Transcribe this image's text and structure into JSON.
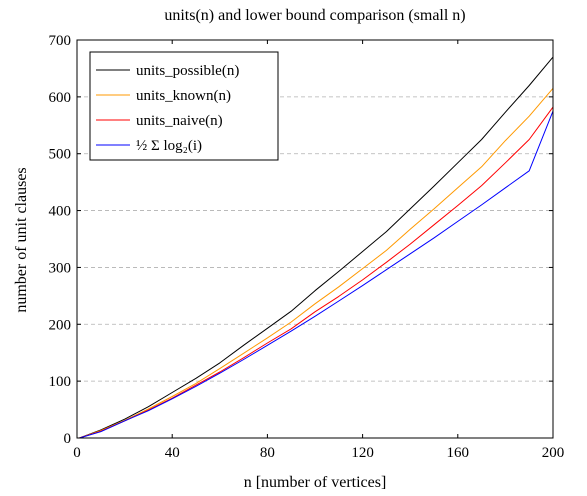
{
  "chart_data": {
    "type": "line",
    "title": "units(n) and lower bound comparison (small n)",
    "xlabel": "n [number of vertices]",
    "ylabel": "number of unit clauses",
    "xlim": [
      0,
      200
    ],
    "ylim": [
      0,
      700
    ],
    "xticks": [
      0,
      40,
      80,
      120,
      160,
      200
    ],
    "yticks": [
      0,
      100,
      200,
      300,
      400,
      500,
      600,
      700
    ],
    "grid": "horizontal-dashed",
    "legend_position": "top-left",
    "series": [
      {
        "name": "units_possible(n)",
        "color": "#000000",
        "x": [
          1,
          10,
          20,
          30,
          40,
          50,
          60,
          70,
          80,
          90,
          100,
          110,
          120,
          130,
          140,
          150,
          160,
          170,
          180,
          190,
          200
        ],
        "y": [
          0,
          14,
          33,
          55,
          80,
          105,
          132,
          163,
          193,
          223,
          259,
          293,
          328,
          363,
          403,
          443,
          484,
          525,
          573,
          620,
          670
        ]
      },
      {
        "name": "units_known(n)",
        "color": "#ff9900",
        "x": [
          1,
          10,
          20,
          30,
          40,
          50,
          60,
          70,
          80,
          90,
          100,
          110,
          120,
          130,
          140,
          150,
          160,
          170,
          180,
          190,
          200
        ],
        "y": [
          0,
          13,
          31,
          51,
          73,
          96,
          122,
          149,
          176,
          204,
          236,
          266,
          298,
          330,
          367,
          403,
          440,
          477,
          523,
          566,
          615
        ]
      },
      {
        "name": "units_naive(n)",
        "color": "#ff0000",
        "x": [
          1,
          10,
          20,
          30,
          40,
          50,
          60,
          70,
          80,
          90,
          100,
          110,
          120,
          130,
          140,
          150,
          160,
          170,
          180,
          190,
          200
        ],
        "y": [
          0,
          12,
          30,
          49,
          70,
          93,
          116,
          141,
          167,
          192,
          222,
          249,
          278,
          309,
          341,
          375,
          409,
          444,
          484,
          525,
          582
        ]
      },
      {
        "name": "½ Σ log₂(i)",
        "color": "#0000ff",
        "x": [
          1,
          10,
          20,
          30,
          40,
          50,
          60,
          70,
          80,
          90,
          100,
          110,
          120,
          130,
          140,
          150,
          160,
          170,
          180,
          190,
          200
        ],
        "y": [
          0,
          11,
          30,
          48,
          69,
          91,
          114,
          138,
          163,
          188,
          214,
          241,
          268,
          296,
          324,
          352,
          381,
          410,
          440,
          470,
          575
        ]
      }
    ]
  }
}
